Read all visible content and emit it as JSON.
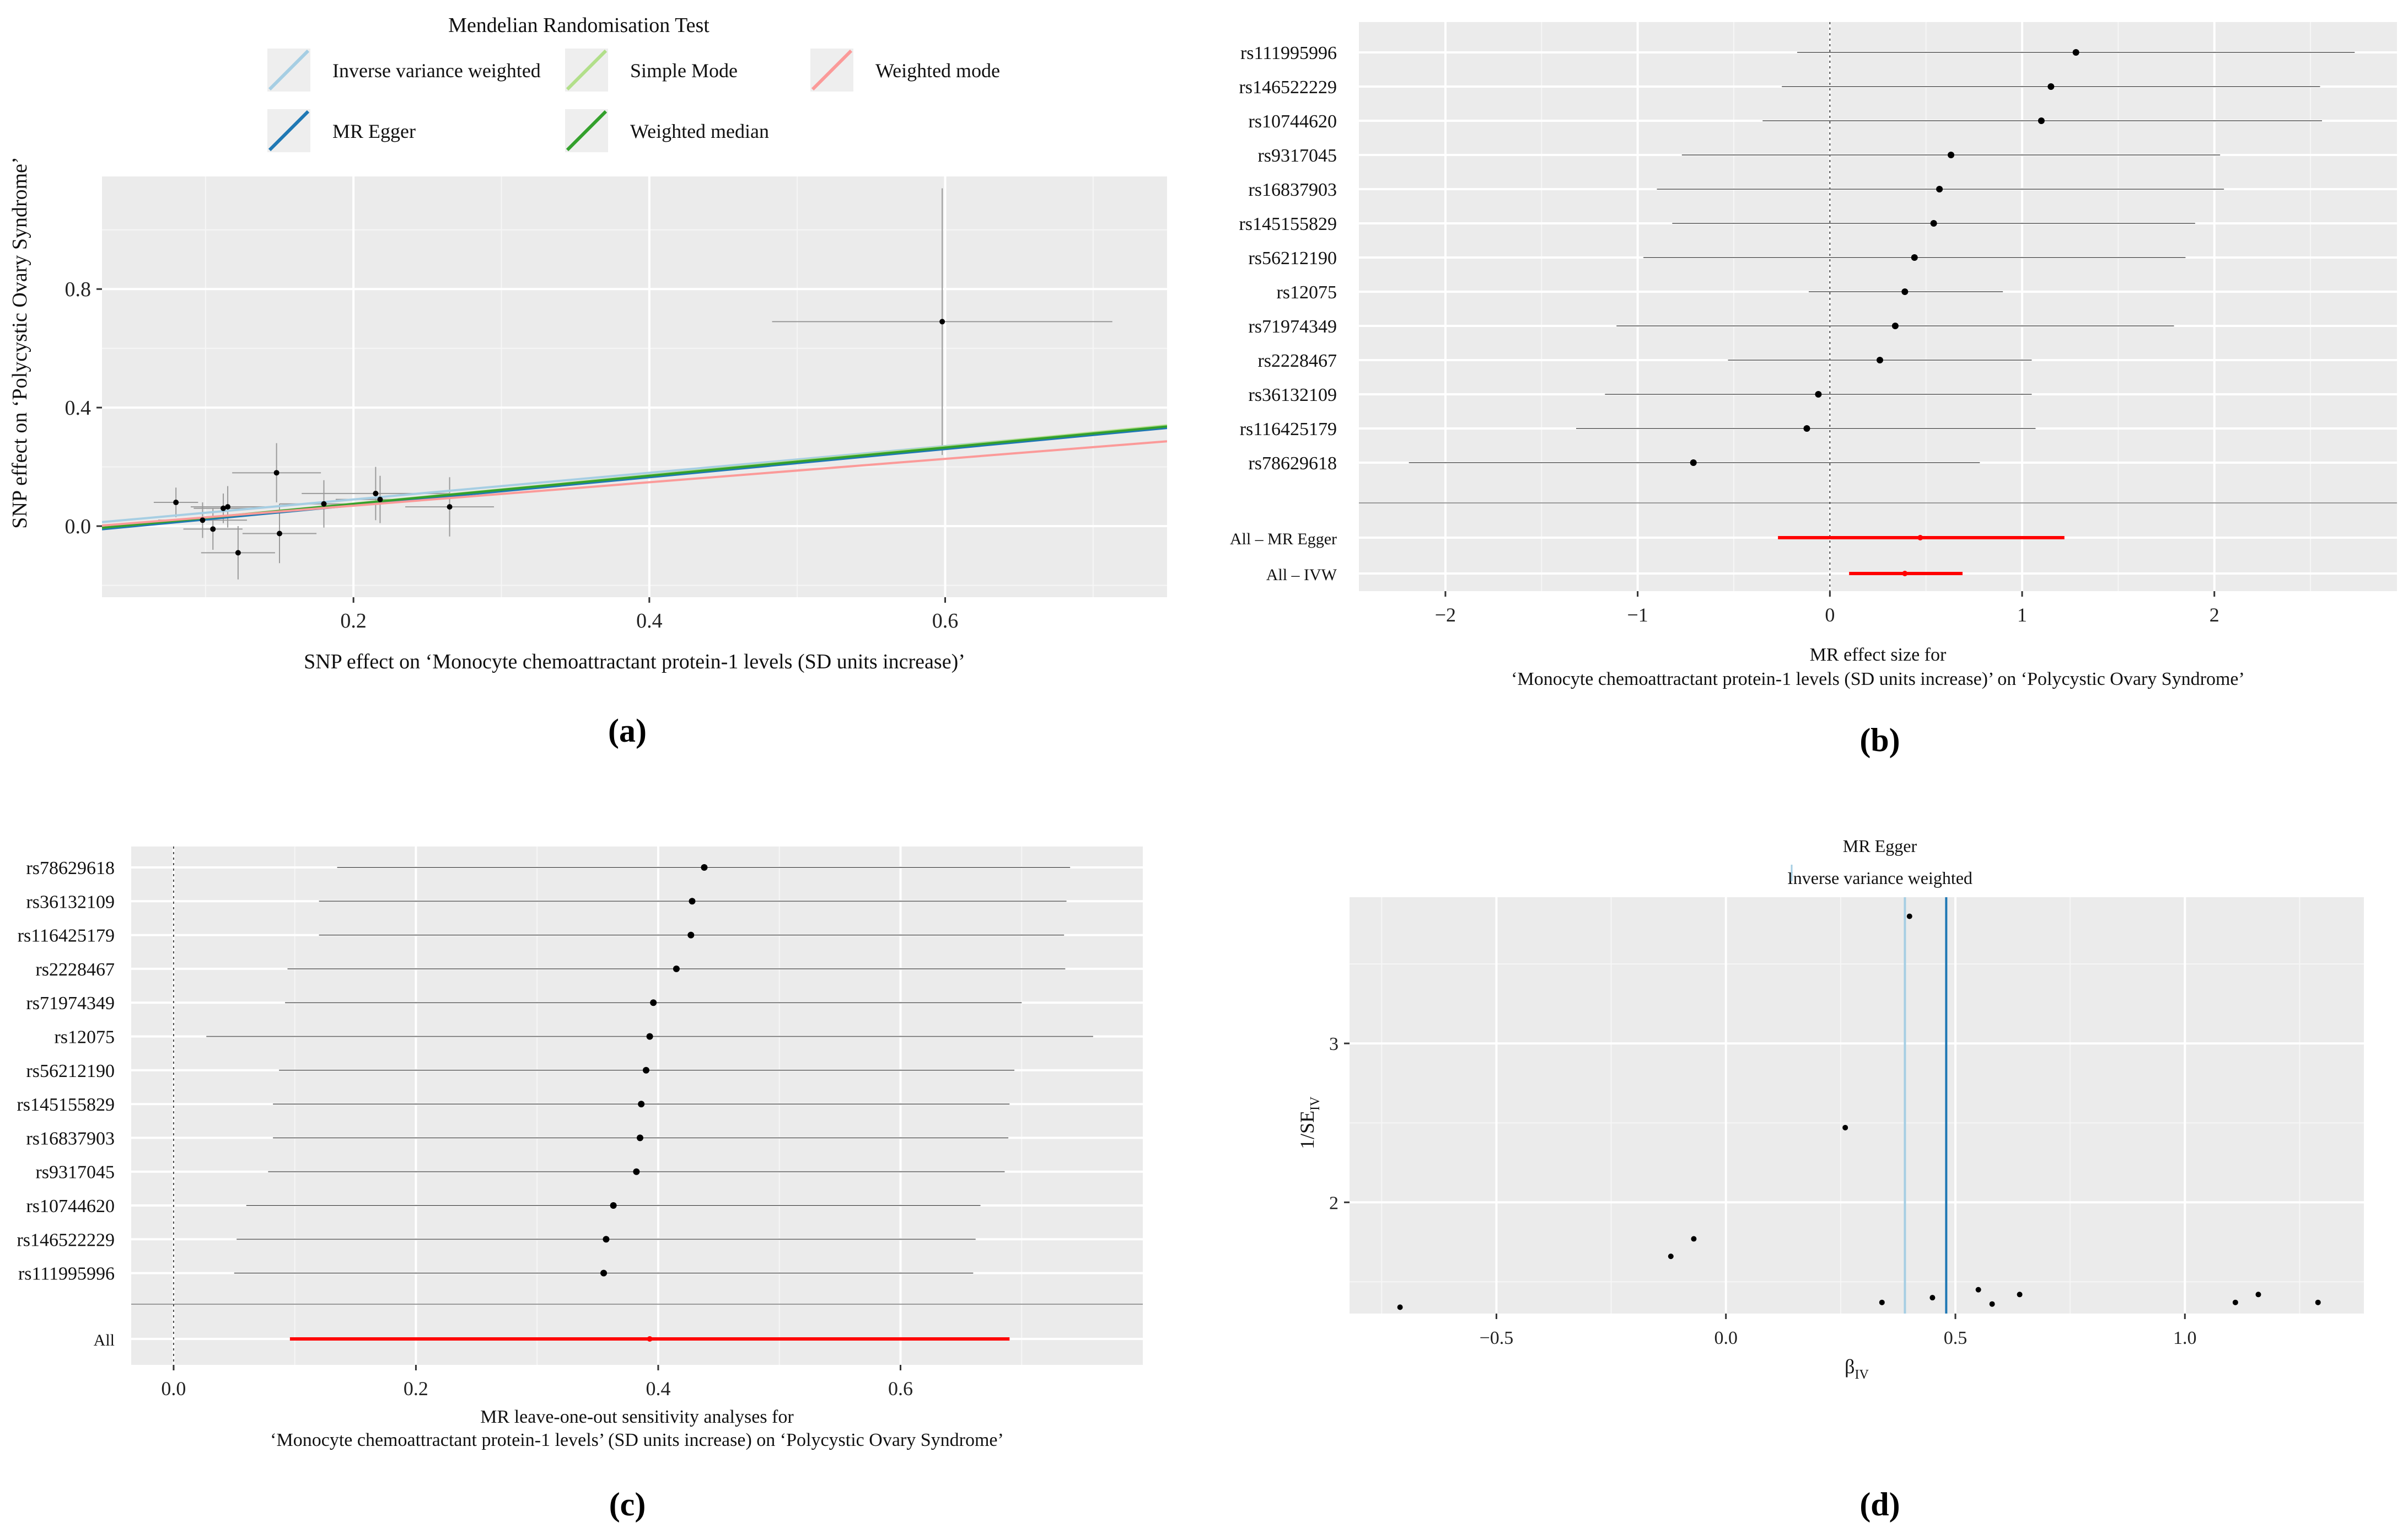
{
  "colors": {
    "panel_bg": "#ebebeb",
    "grid_major": "#ffffff",
    "ivw": "#a6cee3",
    "mr_egger": "#1f78b4",
    "simple_mode": "#b2df8a",
    "weighted_median": "#33a02c",
    "weighted_mode": "#fb9a99",
    "summary_red": "#ff0000"
  },
  "panels": {
    "a": {
      "label": "(a)"
    },
    "b": {
      "label": "(b)"
    },
    "c": {
      "label": "(c)"
    },
    "d": {
      "label": "(d)"
    }
  },
  "chart_data": [
    {
      "id": "a",
      "type": "scatter",
      "legend_title": "Mendelian Randomisation Test",
      "legend": [
        {
          "name": "Inverse variance weighted",
          "color": "#a6cee3"
        },
        {
          "name": "Simple Mode",
          "color": "#b2df8a"
        },
        {
          "name": "Weighted mode",
          "color": "#fb9a99"
        },
        {
          "name": "MR Egger",
          "color": "#1f78b4"
        },
        {
          "name": "Weighted median",
          "color": "#33a02c"
        }
      ],
      "xlabel": "SNP effect on ‘Monocyte chemoattractant protein-1 levels (SD units increase)’",
      "ylabel": "SNP effect on ‘Polycystic Ovary Syndrome’",
      "xlim": [
        0.03,
        0.75
      ],
      "ylim": [
        -0.24,
        1.18
      ],
      "xticks": [
        0.2,
        0.4,
        0.6
      ],
      "xtick_labels": [
        "0.2",
        "0.4",
        "0.6"
      ],
      "yticks": [
        0.0,
        0.4,
        0.8
      ],
      "ytick_labels": [
        "0.0",
        "0.4",
        "0.8"
      ],
      "points": [
        {
          "x": 0.08,
          "y": 0.08,
          "xerr": 0.015,
          "yerr": 0.05
        },
        {
          "x": 0.098,
          "y": 0.02,
          "xerr": 0.03,
          "yerr": 0.06
        },
        {
          "x": 0.105,
          "y": -0.01,
          "xerr": 0.02,
          "yerr": 0.07
        },
        {
          "x": 0.112,
          "y": 0.06,
          "xerr": 0.02,
          "yerr": 0.05
        },
        {
          "x": 0.115,
          "y": 0.065,
          "xerr": 0.025,
          "yerr": 0.07
        },
        {
          "x": 0.122,
          "y": -0.09,
          "xerr": 0.025,
          "yerr": 0.09
        },
        {
          "x": 0.148,
          "y": 0.18,
          "xerr": 0.03,
          "yerr": 0.1
        },
        {
          "x": 0.15,
          "y": -0.025,
          "xerr": 0.025,
          "yerr": 0.1
        },
        {
          "x": 0.18,
          "y": 0.075,
          "xerr": 0.03,
          "yerr": 0.08
        },
        {
          "x": 0.215,
          "y": 0.11,
          "xerr": 0.05,
          "yerr": 0.09
        },
        {
          "x": 0.218,
          "y": 0.09,
          "xerr": 0.03,
          "yerr": 0.08
        },
        {
          "x": 0.265,
          "y": 0.065,
          "xerr": 0.03,
          "yerr": 0.1
        },
        {
          "x": 0.598,
          "y": 0.69,
          "xerr": 0.115,
          "yerr": 0.45
        }
      ],
      "lines": [
        {
          "name": "Inverse variance weighted",
          "color": "#a6cee3",
          "intercept": 0.0,
          "slope": 0.45
        },
        {
          "name": "MR Egger",
          "color": "#1f78b4",
          "intercept": -0.025,
          "slope": 0.475
        },
        {
          "name": "Simple Mode",
          "color": "#b2df8a",
          "intercept": -0.02,
          "slope": 0.48
        },
        {
          "name": "Weighted median",
          "color": "#33a02c",
          "intercept": -0.02,
          "slope": 0.475
        },
        {
          "name": "Weighted mode",
          "color": "#fb9a99",
          "intercept": -0.01,
          "slope": 0.395
        }
      ]
    },
    {
      "id": "b",
      "type": "forest",
      "xlabel_line1": "MR effect size for",
      "xlabel_line2": "‘Monocyte chemoattractant protein-1 levels (SD units increase)’ on ‘Polycystic Ovary Syndrome’",
      "xlim": [
        -2.45,
        2.95
      ],
      "xticks": [
        -2,
        -1,
        0,
        1,
        2
      ],
      "xtick_labels": [
        "−2",
        "−1",
        "0",
        "1",
        "2"
      ],
      "rows": [
        {
          "label": "rs111995996",
          "est": 1.28,
          "lo": -0.17,
          "hi": 2.73
        },
        {
          "label": "rs146522229",
          "est": 1.15,
          "lo": -0.25,
          "hi": 2.55
        },
        {
          "label": "rs10744620",
          "est": 1.1,
          "lo": -0.35,
          "hi": 2.56
        },
        {
          "label": "rs9317045",
          "est": 0.63,
          "lo": -0.77,
          "hi": 2.03
        },
        {
          "label": "rs16837903",
          "est": 0.57,
          "lo": -0.9,
          "hi": 2.05
        },
        {
          "label": "rs145155829",
          "est": 0.54,
          "lo": -0.82,
          "hi": 1.9
        },
        {
          "label": "rs56212190",
          "est": 0.44,
          "lo": -0.97,
          "hi": 1.85
        },
        {
          "label": "rs12075",
          "est": 0.39,
          "lo": -0.11,
          "hi": 0.9
        },
        {
          "label": "rs71974349",
          "est": 0.34,
          "lo": -1.11,
          "hi": 1.79
        },
        {
          "label": "rs2228467",
          "est": 0.26,
          "lo": -0.53,
          "hi": 1.05
        },
        {
          "label": "rs36132109",
          "est": -0.06,
          "lo": -1.17,
          "hi": 1.05
        },
        {
          "label": "rs116425179",
          "est": -0.12,
          "lo": -1.32,
          "hi": 1.07
        },
        {
          "label": "rs78629618",
          "est": -0.71,
          "lo": -2.19,
          "hi": 0.78
        }
      ],
      "summary": [
        {
          "label": "All – MR Egger",
          "est": 0.47,
          "lo": -0.27,
          "hi": 1.22
        },
        {
          "label": "All – IVW",
          "est": 0.39,
          "lo": 0.1,
          "hi": 0.69
        }
      ]
    },
    {
      "id": "c",
      "type": "forest",
      "xlabel_line1": "MR leave-one-out sensitivity analyses for",
      "xlabel_line2": "‘Monocyte chemoattractant protein-1 levels’ (SD units increase) on ‘Polycystic Ovary Syndrome’",
      "xlim": [
        -0.035,
        0.8
      ],
      "xticks": [
        0.0,
        0.2,
        0.4,
        0.6
      ],
      "xtick_labels": [
        "0.0",
        "0.2",
        "0.4",
        "0.6"
      ],
      "rows": [
        {
          "label": "rs78629618",
          "est": 0.438,
          "lo": 0.135,
          "hi": 0.74
        },
        {
          "label": "rs36132109",
          "est": 0.428,
          "lo": 0.12,
          "hi": 0.737
        },
        {
          "label": "rs116425179",
          "est": 0.427,
          "lo": 0.12,
          "hi": 0.735
        },
        {
          "label": "rs2228467",
          "est": 0.415,
          "lo": 0.094,
          "hi": 0.736
        },
        {
          "label": "rs71974349",
          "est": 0.396,
          "lo": 0.092,
          "hi": 0.7
        },
        {
          "label": "rs12075",
          "est": 0.393,
          "lo": 0.027,
          "hi": 0.759
        },
        {
          "label": "rs56212190",
          "est": 0.39,
          "lo": 0.087,
          "hi": 0.694
        },
        {
          "label": "rs145155829",
          "est": 0.386,
          "lo": 0.082,
          "hi": 0.69
        },
        {
          "label": "rs16837903",
          "est": 0.385,
          "lo": 0.082,
          "hi": 0.689
        },
        {
          "label": "rs9317045",
          "est": 0.382,
          "lo": 0.078,
          "hi": 0.686
        },
        {
          "label": "rs10744620",
          "est": 0.363,
          "lo": 0.06,
          "hi": 0.666
        },
        {
          "label": "rs146522229",
          "est": 0.357,
          "lo": 0.052,
          "hi": 0.662
        },
        {
          "label": "rs111995996",
          "est": 0.355,
          "lo": 0.05,
          "hi": 0.66
        }
      ],
      "summary": [
        {
          "label": "All",
          "est": 0.393,
          "lo": 0.096,
          "hi": 0.69
        }
      ]
    },
    {
      "id": "d",
      "type": "scatter",
      "legend": [
        {
          "name": "MR Egger",
          "color": "#1f78b4"
        },
        {
          "name": "Inverse variance weighted",
          "color": "#a6cee3"
        }
      ],
      "xlabel": "β",
      "xlabel_sub": "IV",
      "ylabel": "1/SE",
      "ylabel_sub": "IV",
      "xlim": [
        -0.82,
        1.39
      ],
      "ylim": [
        1.3,
        3.92
      ],
      "xticks": [
        -0.5,
        0.0,
        0.5,
        1.0
      ],
      "xtick_labels": [
        "−0.5",
        "0.0",
        "0.5",
        "1.0"
      ],
      "yticks": [
        2,
        3
      ],
      "ytick_labels": [
        "2",
        "3"
      ],
      "vlines": [
        {
          "name": "Inverse variance weighted",
          "x": 0.39,
          "color": "#a6cee3"
        },
        {
          "name": "MR Egger",
          "x": 0.48,
          "color": "#1f78b4"
        }
      ],
      "points": [
        {
          "x": 0.4,
          "y": 3.8
        },
        {
          "x": 0.26,
          "y": 2.47
        },
        {
          "x": -0.07,
          "y": 1.77
        },
        {
          "x": -0.12,
          "y": 1.66
        },
        {
          "x": -0.71,
          "y": 1.34
        },
        {
          "x": 0.34,
          "y": 1.37
        },
        {
          "x": 0.45,
          "y": 1.4
        },
        {
          "x": 0.55,
          "y": 1.45
        },
        {
          "x": 0.58,
          "y": 1.36
        },
        {
          "x": 0.64,
          "y": 1.42
        },
        {
          "x": 1.11,
          "y": 1.37
        },
        {
          "x": 1.16,
          "y": 1.42
        },
        {
          "x": 1.29,
          "y": 1.37
        }
      ]
    }
  ]
}
